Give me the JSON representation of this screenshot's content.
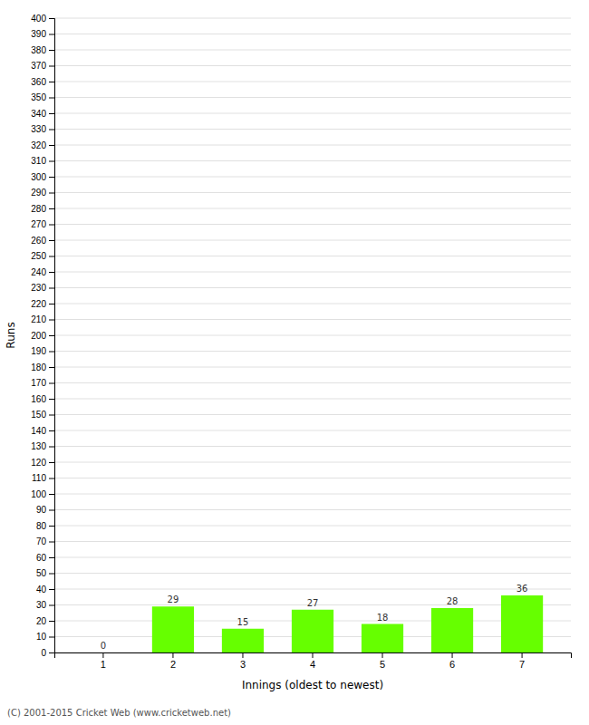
{
  "chart_data": {
    "type": "bar",
    "categories": [
      1,
      2,
      3,
      4,
      5,
      6,
      7
    ],
    "values": [
      0,
      29,
      15,
      27,
      18,
      28,
      36
    ],
    "color": "#66ff00",
    "xlabel": "Innings (oldest to newest)",
    "ylabel": "Runs",
    "ylim": [
      0,
      400
    ],
    "yticks": [
      0,
      10,
      20,
      30,
      40,
      50,
      60,
      70,
      80,
      90,
      100,
      110,
      120,
      130,
      140,
      150,
      160,
      170,
      180,
      190,
      200,
      210,
      220,
      230,
      240,
      250,
      260,
      270,
      280,
      290,
      300,
      310,
      320,
      330,
      340,
      350,
      360,
      370,
      380,
      390,
      400
    ],
    "grid": true,
    "data_labels": true,
    "footer": "(C) 2001-2015 Cricket Web (www.cricketweb.net)"
  }
}
